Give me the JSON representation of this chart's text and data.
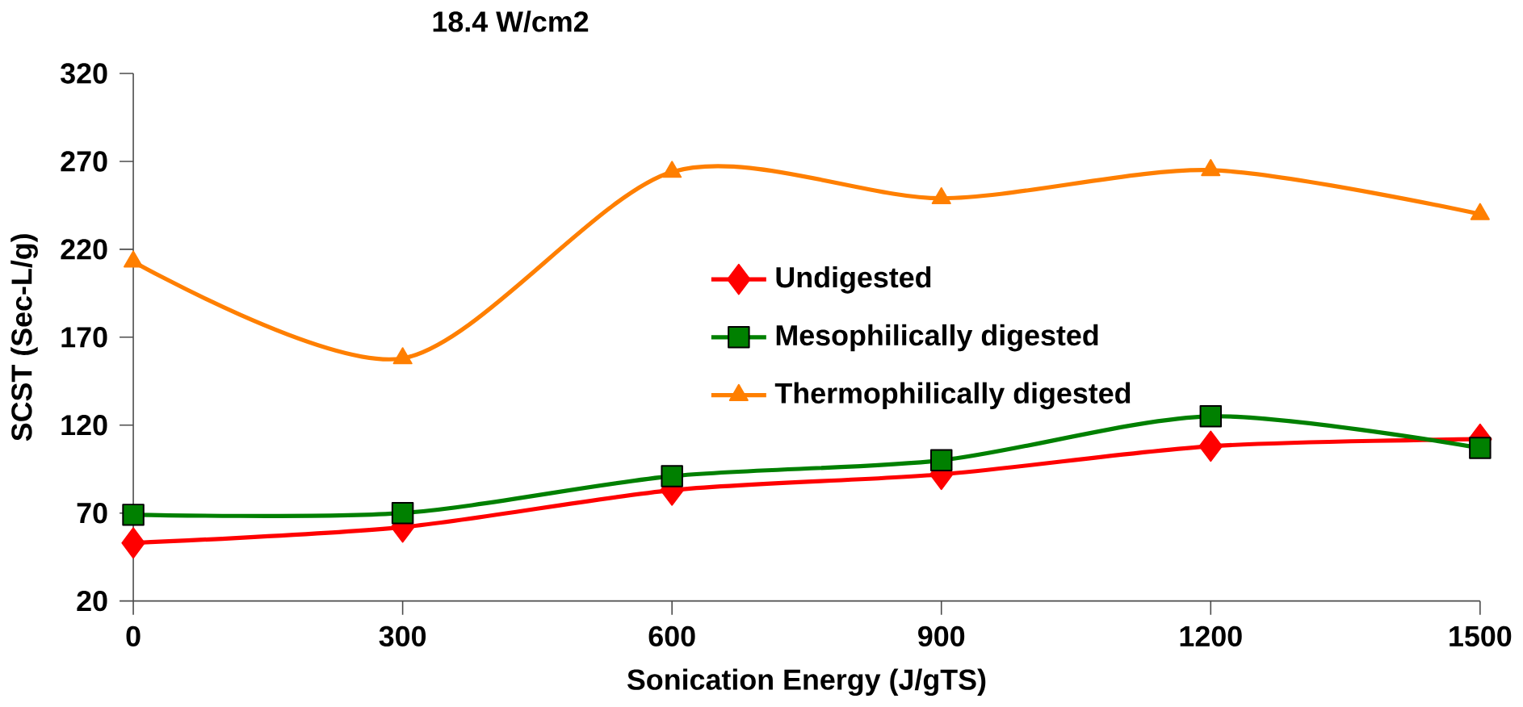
{
  "chart_data": {
    "type": "line",
    "title": "18.4 W/cm2",
    "xlabel": "Sonication Energy (J/gTS)",
    "ylabel": "SCST (Sec-L/g)",
    "x": [
      0,
      300,
      600,
      900,
      1200,
      1500
    ],
    "series": [
      {
        "name": "Undigested",
        "color": "#ff0000",
        "marker": "diamond",
        "values": [
          53,
          62,
          83,
          92,
          108,
          112
        ]
      },
      {
        "name": "Mesophilically digested",
        "color": "#008000",
        "marker": "square",
        "values": [
          69,
          70,
          91,
          100,
          125,
          107
        ]
      },
      {
        "name": "Thermophilically digested",
        "color": "#ff7f00",
        "marker": "triangle",
        "values": [
          213,
          158,
          264,
          249,
          265,
          240
        ]
      }
    ],
    "xlim": [
      0,
      1500
    ],
    "xticks": [
      0,
      300,
      600,
      900,
      1200,
      1500
    ],
    "ylim": [
      20,
      320
    ],
    "yticks": [
      20,
      70,
      120,
      170,
      220,
      270,
      320
    ],
    "grid": false,
    "legend": "center",
    "line_style": "solid"
  }
}
